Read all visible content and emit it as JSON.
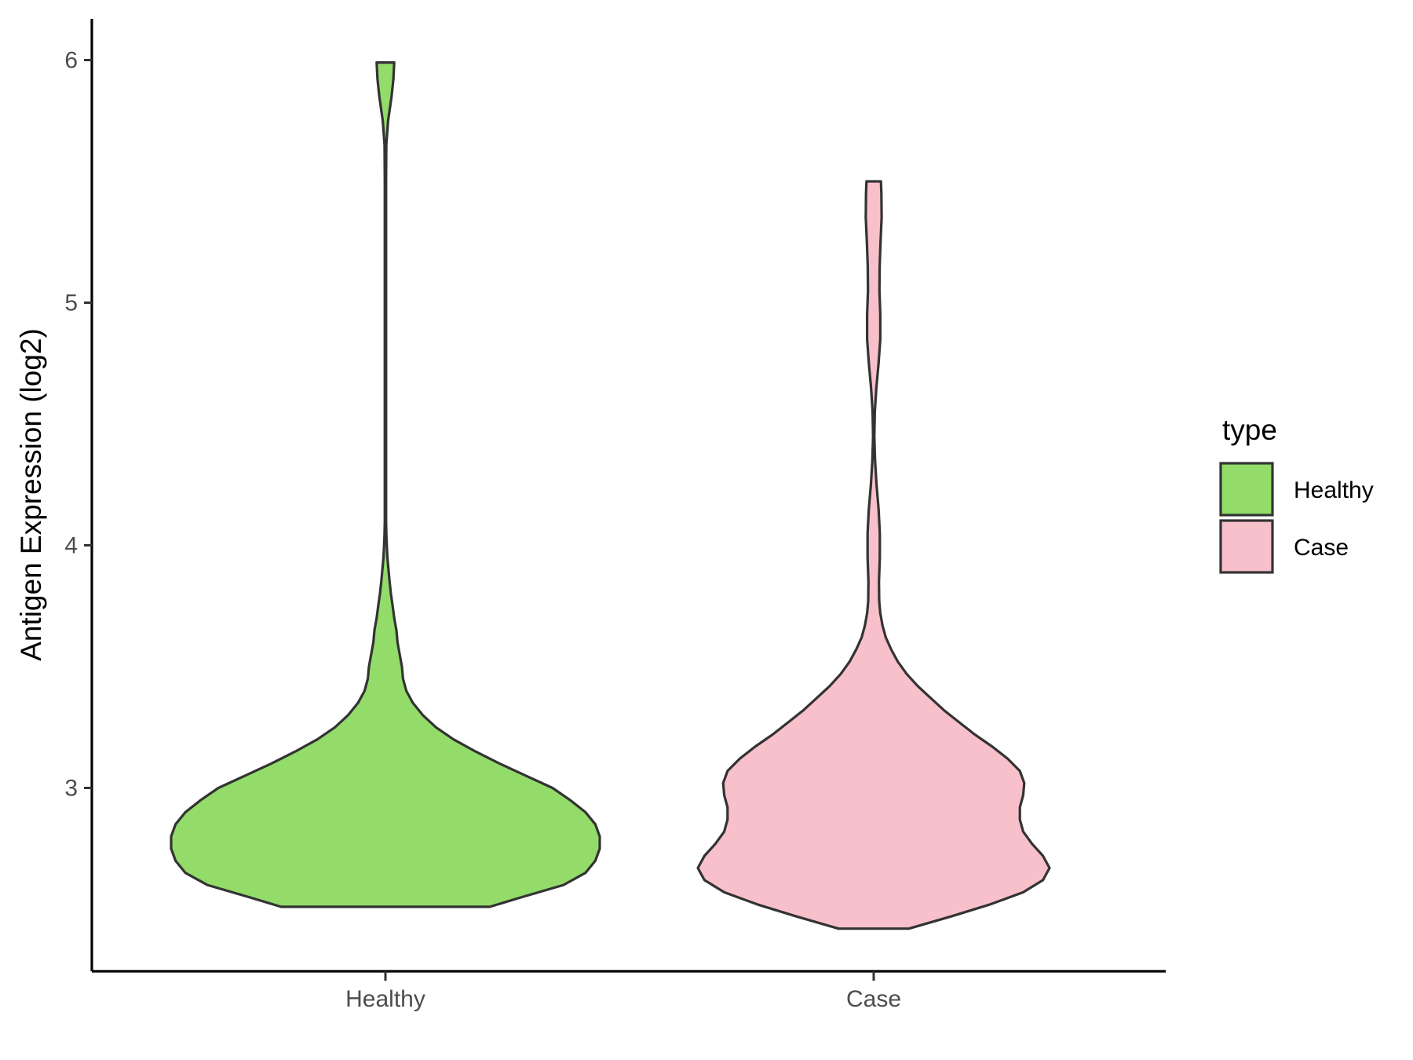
{
  "chart_data": {
    "type": "violin",
    "ylabel": "Antigen Expression (log2)",
    "xlabel": "",
    "categories": [
      "Healthy",
      "Case"
    ],
    "y_ticks": [
      3,
      4,
      5,
      6
    ],
    "ylim": [
      2.25,
      6.18
    ],
    "grid": false,
    "legend": {
      "title": "type",
      "placement": "right",
      "entries": [
        {
          "label": "Healthy",
          "color": "#93dc6a"
        },
        {
          "label": "Case",
          "color": "#f8c0cb"
        }
      ]
    },
    "series": [
      {
        "category": "Healthy",
        "color": "#93dc6a",
        "min": 2.51,
        "max": 5.99,
        "density": [
          [
            2.51,
            0.475
          ],
          [
            2.55,
            0.62
          ],
          [
            2.6,
            0.81
          ],
          [
            2.65,
            0.91
          ],
          [
            2.7,
            0.955
          ],
          [
            2.75,
            0.975
          ],
          [
            2.8,
            0.975
          ],
          [
            2.85,
            0.955
          ],
          [
            2.9,
            0.91
          ],
          [
            2.95,
            0.84
          ],
          [
            3.0,
            0.76
          ],
          [
            3.05,
            0.64
          ],
          [
            3.1,
            0.52
          ],
          [
            3.15,
            0.41
          ],
          [
            3.2,
            0.31
          ],
          [
            3.25,
            0.23
          ],
          [
            3.3,
            0.17
          ],
          [
            3.35,
            0.125
          ],
          [
            3.4,
            0.095
          ],
          [
            3.45,
            0.08
          ],
          [
            3.5,
            0.075
          ],
          [
            3.55,
            0.065
          ],
          [
            3.6,
            0.055
          ],
          [
            3.65,
            0.05
          ],
          [
            3.7,
            0.04
          ],
          [
            3.75,
            0.033
          ],
          [
            3.8,
            0.025
          ],
          [
            3.85,
            0.019
          ],
          [
            3.9,
            0.014
          ],
          [
            3.95,
            0.009
          ],
          [
            4.0,
            0.006
          ],
          [
            4.05,
            0.004
          ],
          [
            4.1,
            0.003
          ],
          [
            4.2,
            0.003
          ],
          [
            4.5,
            0.003
          ],
          [
            5.0,
            0.003
          ],
          [
            5.5,
            0.003
          ],
          [
            5.65,
            0.004
          ],
          [
            5.75,
            0.012
          ],
          [
            5.85,
            0.028
          ],
          [
            5.92,
            0.036
          ],
          [
            5.99,
            0.04
          ]
        ]
      },
      {
        "category": "Case",
        "color": "#f8c0cb",
        "min": 2.42,
        "max": 5.5,
        "density": [
          [
            2.42,
            0.16
          ],
          [
            2.47,
            0.35
          ],
          [
            2.52,
            0.53
          ],
          [
            2.57,
            0.68
          ],
          [
            2.62,
            0.77
          ],
          [
            2.67,
            0.8
          ],
          [
            2.72,
            0.77
          ],
          [
            2.77,
            0.72
          ],
          [
            2.82,
            0.68
          ],
          [
            2.87,
            0.665
          ],
          [
            2.92,
            0.665
          ],
          [
            2.97,
            0.68
          ],
          [
            3.02,
            0.685
          ],
          [
            3.07,
            0.665
          ],
          [
            3.12,
            0.61
          ],
          [
            3.17,
            0.54
          ],
          [
            3.22,
            0.46
          ],
          [
            3.27,
            0.39
          ],
          [
            3.32,
            0.32
          ],
          [
            3.37,
            0.26
          ],
          [
            3.42,
            0.2
          ],
          [
            3.47,
            0.15
          ],
          [
            3.52,
            0.11
          ],
          [
            3.57,
            0.08
          ],
          [
            3.62,
            0.055
          ],
          [
            3.67,
            0.04
          ],
          [
            3.72,
            0.03
          ],
          [
            3.77,
            0.025
          ],
          [
            3.85,
            0.024
          ],
          [
            3.95,
            0.028
          ],
          [
            4.05,
            0.028
          ],
          [
            4.15,
            0.022
          ],
          [
            4.25,
            0.013
          ],
          [
            4.35,
            0.006
          ],
          [
            4.45,
            0.003
          ],
          [
            4.55,
            0.005
          ],
          [
            4.65,
            0.012
          ],
          [
            4.75,
            0.022
          ],
          [
            4.85,
            0.03
          ],
          [
            4.95,
            0.03
          ],
          [
            5.05,
            0.026
          ],
          [
            5.15,
            0.027
          ],
          [
            5.25,
            0.031
          ],
          [
            5.35,
            0.036
          ],
          [
            5.45,
            0.035
          ],
          [
            5.5,
            0.033
          ]
        ]
      }
    ]
  }
}
